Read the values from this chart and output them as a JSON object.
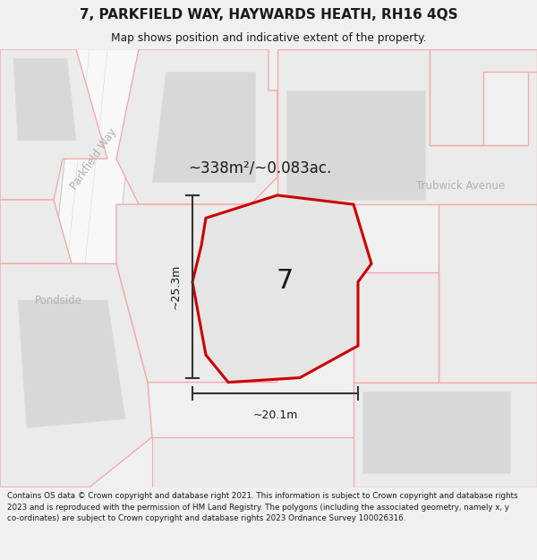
{
  "title": "7, PARKFIELD WAY, HAYWARDS HEATH, RH16 4QS",
  "subtitle": "Map shows position and indicative extent of the property.",
  "area_text": "~338m²/~0.083ac.",
  "number_label": "7",
  "dim_height": "~25.3m",
  "dim_width": "~20.1m",
  "street_parkfield": "Parkfield Way",
  "street_trubwick": "Trubwick Avenue",
  "street_pondside": "Pondside",
  "footer_text": "Contains OS data © Crown copyright and database right 2021. This information is subject to Crown copyright and database rights 2023 and is reproduced with the permission of HM Land Registry. The polygons (including the associated geometry, namely x, y co-ordinates) are subject to Crown copyright and database rights 2023 Ordnance Survey 100026316.",
  "bg_color": "#f0f0f0",
  "map_bg": "#ffffff",
  "parcel_fill": "#ebebeb",
  "building_fill": "#d8d8d8",
  "highlight_fill": "#e5e5e5",
  "red_color": "#cc0000",
  "pink_color": "#f5aaaa",
  "dark_color": "#1a1a1a",
  "street_color": "#b0b0b0",
  "dim_color": "#333333"
}
